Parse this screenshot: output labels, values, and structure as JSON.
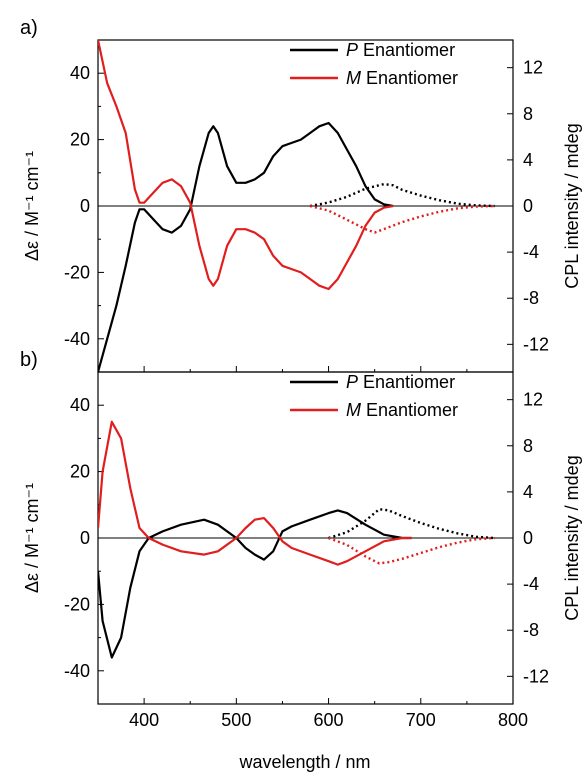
{
  "figure": {
    "x_axis_title": "wavelength / nm",
    "colors": {
      "P": "#000000",
      "M": "#e11e1e"
    }
  },
  "chart_data": [
    {
      "type": "line",
      "panel_label": "a)",
      "xlabel": "wavelength / nm",
      "ylabel": "Δε / M⁻¹ cm⁻¹",
      "ylabel_right": "CPL intensity / mdeg",
      "xlim": [
        350,
        800
      ],
      "ylim": [
        -50,
        50
      ],
      "ylim_right": [
        -14.4,
        14.4
      ],
      "x_ticks": [
        400,
        500,
        600,
        700,
        800
      ],
      "y_ticks": [
        -40,
        -20,
        0,
        20,
        40
      ],
      "y_ticks_right": [
        -12,
        -8,
        -4,
        0,
        4,
        8,
        12
      ],
      "legend": {
        "position": "top-right",
        "entries": [
          {
            "italic": "P",
            "text": " Enantiomer",
            "color": "#000000"
          },
          {
            "italic": "M",
            "text": " Enantiomer",
            "color": "#e11e1e"
          }
        ]
      },
      "series": [
        {
          "name": "P Enantiomer",
          "kind": "CD",
          "color": "#000000",
          "x": [
            350,
            360,
            370,
            380,
            390,
            395,
            400,
            410,
            420,
            430,
            440,
            450,
            460,
            470,
            475,
            480,
            490,
            500,
            510,
            520,
            530,
            540,
            550,
            560,
            570,
            580,
            590,
            600,
            610,
            620,
            630,
            640,
            650,
            660,
            670
          ],
          "y": [
            -50,
            -40,
            -30,
            -18,
            -5,
            -1,
            -1,
            -4,
            -7,
            -8,
            -6,
            -1,
            12,
            22,
            24,
            22,
            12,
            7,
            7,
            8,
            10,
            15,
            18,
            19,
            20,
            22,
            24,
            25,
            22,
            17,
            12,
            6,
            2,
            0.5,
            0
          ]
        },
        {
          "name": "M Enantiomer",
          "kind": "CD",
          "color": "#e11e1e",
          "x": [
            350,
            360,
            370,
            380,
            390,
            395,
            400,
            410,
            420,
            430,
            440,
            450,
            460,
            470,
            475,
            480,
            490,
            500,
            510,
            520,
            530,
            540,
            550,
            560,
            570,
            580,
            590,
            600,
            610,
            620,
            630,
            640,
            650,
            660,
            670
          ],
          "y": [
            50,
            37,
            30,
            22,
            5,
            1,
            1,
            4,
            7,
            8,
            6,
            1,
            -12,
            -22,
            -24,
            -22,
            -12,
            -7,
            -7,
            -8,
            -10,
            -15,
            -18,
            -19,
            -20,
            -22,
            -24,
            -25,
            -22,
            -17,
            -12,
            -6,
            -2,
            -0.5,
            0
          ]
        },
        {
          "name": "P Enantiomer",
          "kind": "CPL",
          "color": "#000000",
          "dotted": true,
          "x": [
            580,
            600,
            620,
            640,
            660,
            670,
            680,
            700,
            720,
            740,
            760,
            780
          ],
          "y": [
            0,
            0.3,
            0.8,
            1.5,
            1.9,
            1.8,
            1.4,
            0.9,
            0.5,
            0.2,
            0.05,
            0
          ]
        },
        {
          "name": "M Enantiomer",
          "kind": "CPL",
          "color": "#e11e1e",
          "dotted": true,
          "x": [
            580,
            600,
            620,
            640,
            650,
            660,
            670,
            680,
            700,
            720,
            740,
            760,
            780
          ],
          "y": [
            0,
            -0.4,
            -1.2,
            -2.0,
            -2.3,
            -2.0,
            -1.7,
            -1.4,
            -0.9,
            -0.5,
            -0.2,
            -0.05,
            0
          ]
        }
      ]
    },
    {
      "type": "line",
      "panel_label": "b)",
      "xlabel": "wavelength / nm",
      "ylabel": "Δε / M⁻¹ cm⁻¹",
      "ylabel_right": "CPL intensity / mdeg",
      "xlim": [
        350,
        800
      ],
      "ylim": [
        -50,
        50
      ],
      "ylim_right": [
        -14.4,
        14.4
      ],
      "x_ticks": [
        400,
        500,
        600,
        700,
        800
      ],
      "y_ticks": [
        -40,
        -20,
        0,
        20,
        40
      ],
      "y_ticks_right": [
        -12,
        -8,
        -4,
        0,
        4,
        8,
        12
      ],
      "legend": {
        "position": "top-right",
        "entries": [
          {
            "italic": "P",
            "text": " Enantiomer",
            "color": "#000000"
          },
          {
            "italic": "M",
            "text": " Enantiomer",
            "color": "#e11e1e"
          }
        ]
      },
      "series": [
        {
          "name": "P Enantiomer",
          "kind": "CD",
          "color": "#000000",
          "x": [
            350,
            355,
            365,
            375,
            385,
            395,
            405,
            420,
            440,
            465,
            480,
            500,
            510,
            520,
            530,
            540,
            550,
            560,
            580,
            600,
            610,
            620,
            640,
            660,
            680,
            690
          ],
          "y": [
            -10,
            -25,
            -36,
            -30,
            -15,
            -4,
            0,
            2,
            4,
            5.5,
            4,
            0,
            -3,
            -5,
            -6.5,
            -4,
            2,
            3.5,
            5.5,
            7.5,
            8.3,
            7.5,
            4,
            1,
            0,
            0
          ]
        },
        {
          "name": "M Enantiomer",
          "kind": "CD",
          "color": "#e11e1e",
          "x": [
            350,
            355,
            365,
            375,
            385,
            395,
            405,
            420,
            440,
            465,
            480,
            500,
            510,
            520,
            530,
            540,
            550,
            560,
            580,
            600,
            610,
            620,
            640,
            660,
            680,
            690
          ],
          "y": [
            3,
            20,
            35,
            30,
            15,
            3,
            0,
            -2,
            -4,
            -5,
            -4,
            0,
            3,
            5.5,
            6,
            3,
            -1,
            -3,
            -5,
            -7,
            -8,
            -7,
            -4,
            -1,
            0,
            0
          ]
        },
        {
          "name": "P Enantiomer",
          "kind": "CPL",
          "color": "#000000",
          "dotted": true,
          "x": [
            600,
            620,
            640,
            655,
            665,
            680,
            700,
            720,
            740,
            760,
            780
          ],
          "y": [
            0,
            0.5,
            1.5,
            2.5,
            2.4,
            1.9,
            1.3,
            0.8,
            0.4,
            0.1,
            0
          ]
        },
        {
          "name": "M Enantiomer",
          "kind": "CPL",
          "color": "#e11e1e",
          "dotted": true,
          "x": [
            600,
            620,
            640,
            655,
            665,
            680,
            700,
            720,
            740,
            760,
            780
          ],
          "y": [
            0,
            -0.6,
            -1.6,
            -2.2,
            -2.1,
            -1.8,
            -1.3,
            -0.8,
            -0.4,
            -0.1,
            0
          ]
        }
      ]
    }
  ]
}
